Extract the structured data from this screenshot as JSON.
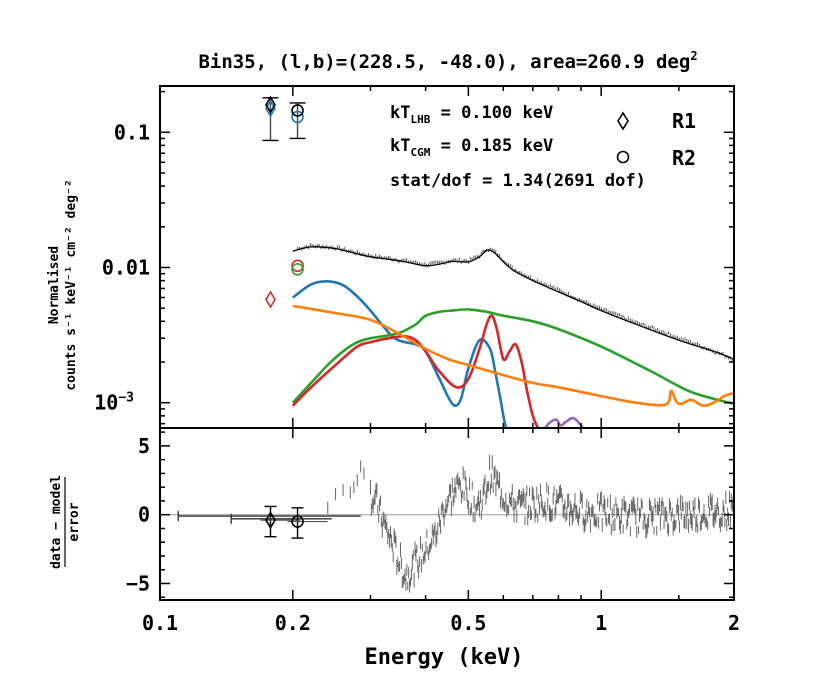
{
  "chart_data": [
    {
      "type": "line",
      "title": "Bin35, (l,b)=(228.5, -48.0), area=260.9 deg",
      "title_sup": "2",
      "ylabel_line1": "Normalised",
      "ylabel_line2": "counts s⁻¹ keV⁻¹ cm⁻² deg⁻²",
      "xscale": "log",
      "yscale": "log",
      "xlim": [
        0.1,
        2.0
      ],
      "ylim": [
        0.00065,
        0.22
      ],
      "yticks": [
        {
          "value": 0.1,
          "label": "0.1"
        },
        {
          "value": 0.01,
          "label": "0.01"
        },
        {
          "value": 0.001,
          "label": "10",
          "sup": "−3"
        }
      ],
      "annotations": {
        "kt_lhb": {
          "pre": "kT",
          "sub": "LHB",
          "post": " = 0.100  keV"
        },
        "kt_cgm": {
          "pre": "kT",
          "sub": "CGM",
          "post": " = 0.185  keV"
        },
        "stat": "stat/dof = 1.34(2691 dof)"
      },
      "legend": [
        {
          "marker": "diamond",
          "label": "R1"
        },
        {
          "marker": "circle",
          "label": "R2"
        }
      ],
      "series": [
        {
          "name": "data",
          "color": "#555555",
          "x": [
            0.2,
            0.22,
            0.25,
            0.28,
            0.3,
            0.33,
            0.36,
            0.4,
            0.43,
            0.46,
            0.5,
            0.53,
            0.55,
            0.57,
            0.6,
            0.63,
            0.7,
            0.8,
            0.9,
            1.0,
            1.2,
            1.5,
            1.8,
            2.0
          ],
          "y": [
            0.0135,
            0.0145,
            0.014,
            0.0128,
            0.0122,
            0.0117,
            0.0112,
            0.0105,
            0.0108,
            0.0113,
            0.0112,
            0.0122,
            0.0137,
            0.0133,
            0.0113,
            0.0098,
            0.0082,
            0.0068,
            0.0057,
            0.0049,
            0.0039,
            0.003,
            0.0024,
            0.0021
          ]
        },
        {
          "name": "model-total",
          "color": "#000000",
          "x": [
            0.2,
            0.22,
            0.25,
            0.28,
            0.3,
            0.33,
            0.36,
            0.4,
            0.43,
            0.46,
            0.5,
            0.53,
            0.55,
            0.57,
            0.6,
            0.63,
            0.7,
            0.8,
            0.9,
            1.0,
            1.2,
            1.5,
            1.8,
            2.0
          ],
          "y": [
            0.0132,
            0.0142,
            0.0138,
            0.0126,
            0.012,
            0.0115,
            0.011,
            0.0103,
            0.0106,
            0.0111,
            0.011,
            0.012,
            0.0134,
            0.013,
            0.0111,
            0.0096,
            0.008,
            0.0066,
            0.0056,
            0.0048,
            0.0038,
            0.0029,
            0.0024,
            0.0021
          ]
        },
        {
          "name": "LHB",
          "color": "#1f77b4",
          "x": [
            0.2,
            0.22,
            0.24,
            0.26,
            0.28,
            0.3,
            0.32,
            0.34,
            0.36,
            0.38,
            0.4,
            0.43,
            0.46,
            0.48,
            0.5,
            0.53,
            0.56,
            0.575,
            0.59,
            0.605,
            0.615
          ],
          "y": [
            0.006,
            0.0075,
            0.0079,
            0.0074,
            0.0061,
            0.0048,
            0.0037,
            0.003,
            0.0028,
            0.0027,
            0.0024,
            0.0015,
            0.00098,
            0.00105,
            0.0018,
            0.0029,
            0.0025,
            0.0017,
            0.0011,
            0.0007,
            0.00062
          ]
        },
        {
          "name": "CGM",
          "color": "#2ca02c",
          "x": [
            0.2,
            0.22,
            0.24,
            0.26,
            0.28,
            0.3,
            0.32,
            0.35,
            0.38,
            0.4,
            0.43,
            0.46,
            0.5,
            0.55,
            0.6,
            0.7,
            0.8,
            1.0,
            1.3,
            1.6,
            2.0
          ],
          "y": [
            0.001,
            0.0014,
            0.0019,
            0.0024,
            0.0028,
            0.003,
            0.0031,
            0.0033,
            0.0038,
            0.0044,
            0.0047,
            0.0048,
            0.0049,
            0.0047,
            0.0044,
            0.004,
            0.0035,
            0.0026,
            0.0017,
            0.0012,
            0.00098
          ]
        },
        {
          "name": "CGM+red",
          "color": "#d62728",
          "x": [
            0.2,
            0.22,
            0.25,
            0.28,
            0.3,
            0.33,
            0.36,
            0.38,
            0.4,
            0.43,
            0.47,
            0.5,
            0.53,
            0.55,
            0.565,
            0.58,
            0.6,
            0.62,
            0.64,
            0.66,
            0.68,
            0.7,
            0.72,
            0.74
          ],
          "y": [
            0.00095,
            0.0013,
            0.0019,
            0.0026,
            0.0028,
            0.003,
            0.0031,
            0.0029,
            0.0024,
            0.0017,
            0.0013,
            0.0015,
            0.0025,
            0.0038,
            0.0044,
            0.0035,
            0.0021,
            0.0024,
            0.0027,
            0.002,
            0.0012,
            0.0008,
            0.00065,
            0.00062
          ]
        },
        {
          "name": "orange",
          "color": "#ff7f0e",
          "x": [
            0.2,
            0.25,
            0.3,
            0.35,
            0.4,
            0.45,
            0.5,
            0.6,
            0.7,
            0.8,
            1.0,
            1.2,
            1.4,
            1.44,
            1.48,
            1.52,
            1.6,
            1.7,
            1.8,
            1.9,
            2.0
          ],
          "y": [
            0.0052,
            0.0046,
            0.0041,
            0.0032,
            0.0025,
            0.0021,
            0.0019,
            0.0016,
            0.0014,
            0.0013,
            0.00112,
            0.001,
            0.00097,
            0.00122,
            0.00102,
            0.00098,
            0.00105,
            0.00095,
            0.001,
            0.00112,
            0.00118
          ]
        },
        {
          "name": "purple",
          "color": "#9467bd",
          "x": [
            0.74,
            0.76,
            0.79,
            0.81,
            0.83,
            0.86,
            0.88,
            0.9,
            0.92
          ],
          "y": [
            0.00062,
            0.0007,
            0.00075,
            0.00068,
            0.00072,
            0.00077,
            0.00074,
            0.00068,
            0.00062
          ]
        }
      ],
      "points": [
        {
          "label": "R1",
          "x": 0.178,
          "y": 0.15,
          "marker": "diamond",
          "color": "#1f77b4",
          "ylo": 0.087,
          "yhi": 0.18
        },
        {
          "label": "R2",
          "x": 0.205,
          "y": 0.13,
          "marker": "circle",
          "color": "#1f77b4",
          "ylo": 0.09,
          "yhi": 0.165
        },
        {
          "label": "R1-model",
          "x": 0.178,
          "y": 0.16,
          "marker": "diamond",
          "color": "#000000"
        },
        {
          "label": "R2-model",
          "x": 0.205,
          "y": 0.145,
          "marker": "circle",
          "color": "#000000"
        },
        {
          "label": "R1-red",
          "x": 0.178,
          "y": 0.0058,
          "marker": "diamond",
          "color": "#d62728"
        },
        {
          "label": "R2-red",
          "x": 0.205,
          "y": 0.0103,
          "marker": "circle",
          "color": "#d62728"
        },
        {
          "label": "R2-green",
          "x": 0.205,
          "y": 0.0097,
          "marker": "circle",
          "color": "#2ca02c"
        }
      ]
    },
    {
      "type": "scatter",
      "ylabel_top": "data − model",
      "ylabel_bottom": "error",
      "xlabel": "Energy (keV)",
      "xscale": "log",
      "xlim": [
        0.1,
        2.0
      ],
      "ylim": [
        -6.2,
        6.3
      ],
      "yticks": [
        {
          "value": 5,
          "label": "5"
        },
        {
          "value": 0,
          "label": "0"
        },
        {
          "value": -5,
          "label": "−5"
        }
      ],
      "xticks": [
        {
          "value": 0.1,
          "label": "0.1"
        },
        {
          "value": 0.2,
          "label": "0.2"
        },
        {
          "value": 0.5,
          "label": "0.5"
        },
        {
          "value": 1,
          "label": "1"
        },
        {
          "value": 2,
          "label": "2"
        }
      ],
      "residual_trend": {
        "x": [
          0.3,
          0.31,
          0.32,
          0.34,
          0.36,
          0.38,
          0.4,
          0.42,
          0.44,
          0.46,
          0.48,
          0.5,
          0.52,
          0.54,
          0.56,
          0.58,
          0.6,
          0.63,
          0.66,
          0.7,
          0.75,
          0.8,
          0.9,
          1.0,
          1.2,
          1.5,
          1.8,
          2.0
        ],
        "y": [
          1.5,
          0.8,
          -0.5,
          -2.5,
          -4.5,
          -3.5,
          -2.5,
          -1.5,
          0.5,
          1.5,
          2.2,
          1.6,
          0.5,
          1.2,
          3.0,
          2.2,
          1.4,
          0.8,
          0.6,
          0.8,
          1.0,
          0.7,
          0.3,
          0.1,
          -0.2,
          0.0,
          0.2,
          0.4
        ],
        "spread": 1.1
      },
      "rising": {
        "x": [
          0.24,
          0.25,
          0.26,
          0.27,
          0.275,
          0.28,
          0.285,
          0.29
        ],
        "y": [
          0.5,
          1.5,
          1.8,
          1.6,
          2.0,
          2.5,
          3.5,
          3.0
        ]
      },
      "points": [
        {
          "label": "R1",
          "x": 0.178,
          "y": -0.4,
          "marker": "diamond",
          "ylo": -1.6,
          "yhi": 0.6,
          "xlo": 0.178,
          "xhi": 0.178
        },
        {
          "label": "R2",
          "x": 0.205,
          "y": -0.5,
          "marker": "circle",
          "ylo": -1.7,
          "yhi": 0.5,
          "xlo": 0.21,
          "xhi": 0.21
        }
      ],
      "xerr_bars": [
        {
          "y": -0.1,
          "x1": 0.11,
          "x2": 0.285
        },
        {
          "y": -0.3,
          "x1": 0.145,
          "x2": 0.245
        }
      ]
    }
  ]
}
